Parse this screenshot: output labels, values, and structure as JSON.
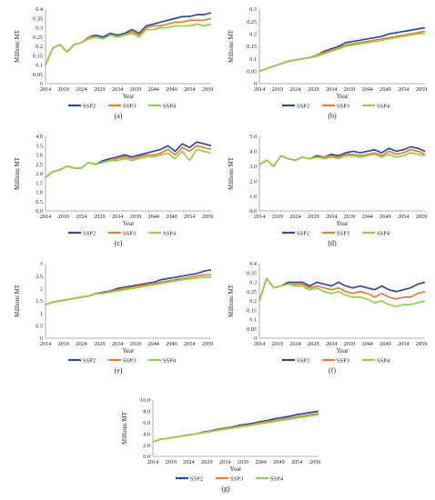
{
  "figure": {
    "panels": [
      {
        "label": "(a)"
      },
      {
        "label": "(b)"
      },
      {
        "label": "(c)"
      },
      {
        "label": "(d)"
      },
      {
        "label": "(e)"
      },
      {
        "label": "(f)"
      },
      {
        "label": "(g)"
      }
    ]
  },
  "colors": {
    "SSP2": "#2e4a9e",
    "SSP3": "#ed7d31",
    "SSP4": "#92d050"
  },
  "chart_data": [
    {
      "type": "line",
      "xlabel": "Year",
      "ylabel": "Millions MT",
      "ylim": [
        0,
        0.4
      ],
      "yticks": [
        0,
        0.05,
        0.1,
        0.15,
        0.2,
        0.25,
        0.3,
        0.35,
        0.4
      ],
      "ytick_labels": [
        "0",
        "0.05",
        "0.1",
        "0.15",
        "0.2",
        "0.25",
        "0.3",
        "0.35",
        "0.4"
      ],
      "xlim": [
        2014,
        2060
      ],
      "xticks": [
        2014,
        2019,
        2024,
        2029,
        2034,
        2039,
        2044,
        2049,
        2054,
        2059
      ],
      "legend": "bottom",
      "grid": false,
      "x": [
        2014,
        2016,
        2018,
        2020,
        2022,
        2024,
        2026,
        2028,
        2030,
        2032,
        2034,
        2036,
        2038,
        2040,
        2042,
        2044,
        2046,
        2048,
        2050,
        2052,
        2054,
        2056,
        2058,
        2060
      ],
      "series": [
        {
          "name": "SSP2",
          "values": [
            0.1,
            0.19,
            0.21,
            0.17,
            0.21,
            0.22,
            0.25,
            0.26,
            0.25,
            0.27,
            0.26,
            0.27,
            0.29,
            0.27,
            0.31,
            0.32,
            0.33,
            0.34,
            0.35,
            0.36,
            0.36,
            0.37,
            0.37,
            0.38
          ]
        },
        {
          "name": "SSP3",
          "values": [
            0.1,
            0.19,
            0.21,
            0.17,
            0.21,
            0.22,
            0.25,
            0.25,
            0.24,
            0.26,
            0.25,
            0.26,
            0.28,
            0.26,
            0.3,
            0.31,
            0.31,
            0.32,
            0.33,
            0.33,
            0.34,
            0.34,
            0.34,
            0.35
          ]
        },
        {
          "name": "SSP4",
          "values": [
            0.1,
            0.19,
            0.21,
            0.17,
            0.21,
            0.22,
            0.24,
            0.25,
            0.24,
            0.26,
            0.25,
            0.26,
            0.27,
            0.25,
            0.29,
            0.29,
            0.3,
            0.3,
            0.31,
            0.31,
            0.31,
            0.32,
            0.31,
            0.32
          ]
        }
      ]
    },
    {
      "type": "line",
      "xlabel": "Year",
      "ylabel": "Millions MT",
      "ylim": [
        0,
        0.3
      ],
      "yticks": [
        0,
        0.05,
        0.1,
        0.15,
        0.2,
        0.25,
        0.3
      ],
      "ytick_labels": [
        "0",
        "0.05",
        "0.1",
        "0.15",
        "0.2",
        "0.25",
        "0.3"
      ],
      "xlim": [
        2014,
        2060
      ],
      "xticks": [
        2014,
        2019,
        2024,
        2029,
        2034,
        2039,
        2044,
        2049,
        2054,
        2059
      ],
      "legend": "bottom",
      "grid": false,
      "x": [
        2014,
        2016,
        2018,
        2020,
        2022,
        2024,
        2026,
        2028,
        2030,
        2032,
        2034,
        2036,
        2038,
        2040,
        2042,
        2044,
        2046,
        2048,
        2050,
        2052,
        2054,
        2056,
        2058,
        2060
      ],
      "series": [
        {
          "name": "SSP2",
          "values": [
            0.05,
            0.06,
            0.07,
            0.08,
            0.09,
            0.095,
            0.1,
            0.105,
            0.115,
            0.13,
            0.14,
            0.15,
            0.165,
            0.17,
            0.175,
            0.18,
            0.185,
            0.19,
            0.2,
            0.205,
            0.21,
            0.215,
            0.22,
            0.225
          ]
        },
        {
          "name": "SSP3",
          "values": [
            0.05,
            0.06,
            0.07,
            0.08,
            0.09,
            0.095,
            0.1,
            0.105,
            0.115,
            0.125,
            0.135,
            0.145,
            0.155,
            0.16,
            0.165,
            0.17,
            0.175,
            0.18,
            0.185,
            0.19,
            0.195,
            0.2,
            0.205,
            0.21
          ]
        },
        {
          "name": "SSP4",
          "values": [
            0.05,
            0.06,
            0.07,
            0.08,
            0.09,
            0.095,
            0.1,
            0.105,
            0.11,
            0.12,
            0.13,
            0.14,
            0.15,
            0.155,
            0.16,
            0.165,
            0.17,
            0.175,
            0.18,
            0.185,
            0.19,
            0.195,
            0.2,
            0.2
          ]
        }
      ]
    },
    {
      "type": "line",
      "xlabel": "Year",
      "ylabel": "Millions MT",
      "ylim": [
        0,
        4.0
      ],
      "yticks": [
        0,
        0.5,
        1.0,
        1.5,
        2.0,
        2.5,
        3.0,
        3.5,
        4.0
      ],
      "ytick_labels": [
        "0.0",
        "0.5",
        "1.0",
        "1.5",
        "2.0",
        "2.5",
        "3.0",
        "3.5",
        "4.0"
      ],
      "xlim": [
        2014,
        2060
      ],
      "xticks": [
        2014,
        2019,
        2024,
        2029,
        2034,
        2039,
        2044,
        2049,
        2054,
        2059
      ],
      "legend": "bottom",
      "grid": false,
      "x": [
        2014,
        2016,
        2018,
        2020,
        2022,
        2024,
        2026,
        2028,
        2030,
        2032,
        2034,
        2036,
        2038,
        2040,
        2042,
        2044,
        2046,
        2048,
        2050,
        2052,
        2054,
        2056,
        2058,
        2060
      ],
      "series": [
        {
          "name": "SSP2",
          "values": [
            1.8,
            2.1,
            2.2,
            2.4,
            2.3,
            2.3,
            2.6,
            2.5,
            2.7,
            2.8,
            2.9,
            3.0,
            2.9,
            3.0,
            3.1,
            3.2,
            3.3,
            3.5,
            3.2,
            3.6,
            3.4,
            3.7,
            3.6,
            3.5
          ]
        },
        {
          "name": "SSP3",
          "values": [
            1.8,
            2.1,
            2.2,
            2.4,
            2.3,
            2.3,
            2.6,
            2.5,
            2.6,
            2.7,
            2.8,
            2.9,
            2.8,
            2.9,
            3.0,
            3.0,
            3.1,
            3.3,
            3.0,
            3.4,
            3.2,
            3.5,
            3.4,
            3.3
          ]
        },
        {
          "name": "SSP4",
          "values": [
            1.8,
            2.1,
            2.2,
            2.4,
            2.3,
            2.3,
            2.6,
            2.5,
            2.6,
            2.7,
            2.7,
            2.8,
            2.7,
            2.8,
            2.9,
            2.9,
            3.0,
            3.1,
            2.8,
            3.2,
            2.7,
            3.3,
            3.2,
            3.1
          ]
        }
      ]
    },
    {
      "type": "line",
      "xlabel": "Year",
      "ylabel": "Millions MT",
      "ylim": [
        0,
        5.0
      ],
      "yticks": [
        0,
        1.0,
        2.0,
        3.0,
        4.0,
        5.0
      ],
      "ytick_labels": [
        "0.0",
        "1.0",
        "2.0",
        "3.0",
        "4.0",
        "5.0"
      ],
      "xlim": [
        2014,
        2060
      ],
      "xticks": [
        2014,
        2019,
        2024,
        2029,
        2034,
        2039,
        2044,
        2049,
        2054,
        2059
      ],
      "legend": "bottom",
      "grid": false,
      "x": [
        2014,
        2016,
        2018,
        2020,
        2022,
        2024,
        2026,
        2028,
        2030,
        2032,
        2034,
        2036,
        2038,
        2040,
        2042,
        2044,
        2046,
        2048,
        2050,
        2052,
        2054,
        2056,
        2058,
        2060
      ],
      "series": [
        {
          "name": "SSP2",
          "values": [
            3.1,
            3.4,
            3.0,
            3.7,
            3.5,
            3.4,
            3.6,
            3.5,
            3.7,
            3.6,
            3.8,
            3.7,
            3.9,
            4.0,
            3.9,
            4.0,
            4.1,
            3.9,
            4.2,
            4.0,
            4.1,
            4.3,
            4.2,
            4.0
          ]
        },
        {
          "name": "SSP3",
          "values": [
            3.1,
            3.4,
            3.0,
            3.7,
            3.5,
            3.4,
            3.6,
            3.5,
            3.6,
            3.6,
            3.7,
            3.6,
            3.8,
            3.8,
            3.7,
            3.8,
            3.9,
            3.7,
            4.0,
            3.8,
            3.9,
            4.1,
            4.0,
            3.8
          ]
        },
        {
          "name": "SSP4",
          "values": [
            3.1,
            3.4,
            3.0,
            3.7,
            3.5,
            3.4,
            3.6,
            3.5,
            3.6,
            3.5,
            3.6,
            3.5,
            3.7,
            3.7,
            3.6,
            3.7,
            3.8,
            3.6,
            3.8,
            3.6,
            3.7,
            3.9,
            3.8,
            3.7
          ]
        }
      ]
    },
    {
      "type": "line",
      "xlabel": "Year",
      "ylabel": "Millions MT",
      "ylim": [
        0,
        3.0
      ],
      "yticks": [
        0,
        0.5,
        1.0,
        1.5,
        2.0,
        2.5,
        3.0
      ],
      "ytick_labels": [
        "0",
        "0.5",
        "1",
        "1.5",
        "2",
        "2.5",
        "3"
      ],
      "xlim": [
        2014,
        2060
      ],
      "xticks": [
        2014,
        2019,
        2024,
        2029,
        2034,
        2039,
        2044,
        2049,
        2054,
        2059
      ],
      "legend": "bottom",
      "grid": false,
      "x": [
        2014,
        2016,
        2018,
        2020,
        2022,
        2024,
        2026,
        2028,
        2030,
        2032,
        2034,
        2036,
        2038,
        2040,
        2042,
        2044,
        2046,
        2048,
        2050,
        2052,
        2054,
        2056,
        2058,
        2060
      ],
      "series": [
        {
          "name": "SSP2",
          "values": [
            1.35,
            1.45,
            1.5,
            1.55,
            1.6,
            1.65,
            1.7,
            1.8,
            1.85,
            1.9,
            2.0,
            2.05,
            2.1,
            2.15,
            2.2,
            2.25,
            2.35,
            2.4,
            2.45,
            2.5,
            2.55,
            2.6,
            2.7,
            2.75
          ]
        },
        {
          "name": "SSP3",
          "values": [
            1.35,
            1.45,
            1.5,
            1.55,
            1.6,
            1.65,
            1.7,
            1.8,
            1.82,
            1.88,
            1.95,
            2.0,
            2.05,
            2.1,
            2.15,
            2.2,
            2.25,
            2.3,
            2.35,
            2.4,
            2.45,
            2.5,
            2.55,
            2.55
          ]
        },
        {
          "name": "SSP4",
          "values": [
            1.35,
            1.45,
            1.5,
            1.55,
            1.6,
            1.65,
            1.7,
            1.78,
            1.8,
            1.85,
            1.9,
            1.95,
            2.0,
            2.05,
            2.1,
            2.15,
            2.2,
            2.25,
            2.3,
            2.35,
            2.38,
            2.42,
            2.45,
            2.45
          ]
        }
      ]
    },
    {
      "type": "line",
      "xlabel": "Year",
      "ylabel": "Millions MT",
      "ylim": [
        0,
        0.4
      ],
      "yticks": [
        0,
        0.05,
        0.1,
        0.15,
        0.2,
        0.25,
        0.3,
        0.35,
        0.4
      ],
      "ytick_labels": [
        "0",
        "0.05",
        "0.1",
        "0.15",
        "0.2",
        "0.25",
        "0.3",
        "0.35",
        "0.4"
      ],
      "xlim": [
        2014,
        2060
      ],
      "xticks": [
        2014,
        2019,
        2024,
        2029,
        2034,
        2039,
        2044,
        2049,
        2054,
        2059
      ],
      "legend": "bottom",
      "grid": false,
      "x": [
        2014,
        2016,
        2018,
        2020,
        2022,
        2024,
        2026,
        2028,
        2030,
        2032,
        2034,
        2036,
        2038,
        2040,
        2042,
        2044,
        2046,
        2048,
        2050,
        2052,
        2054,
        2056,
        2058,
        2060
      ],
      "series": [
        {
          "name": "SSP2",
          "values": [
            0.2,
            0.32,
            0.27,
            0.28,
            0.3,
            0.3,
            0.3,
            0.28,
            0.3,
            0.29,
            0.28,
            0.3,
            0.28,
            0.27,
            0.28,
            0.27,
            0.26,
            0.28,
            0.26,
            0.25,
            0.26,
            0.27,
            0.29,
            0.3
          ]
        },
        {
          "name": "SSP3",
          "values": [
            0.2,
            0.32,
            0.27,
            0.28,
            0.29,
            0.29,
            0.29,
            0.27,
            0.28,
            0.27,
            0.26,
            0.27,
            0.25,
            0.24,
            0.25,
            0.24,
            0.22,
            0.24,
            0.22,
            0.21,
            0.22,
            0.22,
            0.24,
            0.25
          ]
        },
        {
          "name": "SSP4",
          "values": [
            0.2,
            0.32,
            0.27,
            0.28,
            0.29,
            0.28,
            0.28,
            0.26,
            0.27,
            0.25,
            0.24,
            0.25,
            0.23,
            0.22,
            0.22,
            0.21,
            0.19,
            0.2,
            0.18,
            0.17,
            0.18,
            0.18,
            0.19,
            0.2
          ]
        }
      ]
    },
    {
      "type": "line",
      "xlabel": "Year",
      "ylabel": "Millions MT",
      "ylim": [
        0,
        10.0
      ],
      "yticks": [
        0,
        2.0,
        4.0,
        6.0,
        8.0,
        10.0
      ],
      "ytick_labels": [
        "0.0",
        "2.0",
        "4.0",
        "6.0",
        "8.0",
        "10.0"
      ],
      "xlim": [
        2014,
        2060
      ],
      "xticks": [
        2014,
        2019,
        2024,
        2029,
        2034,
        2039,
        2044,
        2049,
        2054,
        2059
      ],
      "legend": "bottom",
      "grid": false,
      "x": [
        2014,
        2016,
        2018,
        2020,
        2022,
        2024,
        2026,
        2028,
        2030,
        2032,
        2034,
        2036,
        2038,
        2040,
        2042,
        2044,
        2046,
        2048,
        2050,
        2052,
        2054,
        2056,
        2058,
        2060
      ],
      "series": [
        {
          "name": "SSP2",
          "values": [
            2.6,
            3.0,
            3.2,
            3.4,
            3.6,
            3.8,
            4.0,
            4.3,
            4.5,
            4.8,
            5.0,
            5.2,
            5.5,
            5.7,
            5.9,
            6.2,
            6.4,
            6.7,
            6.9,
            7.1,
            7.4,
            7.6,
            7.8,
            8.0
          ]
        },
        {
          "name": "SSP3",
          "values": [
            2.6,
            3.0,
            3.2,
            3.4,
            3.6,
            3.8,
            4.0,
            4.2,
            4.4,
            4.7,
            4.9,
            5.1,
            5.3,
            5.5,
            5.7,
            6.0,
            6.2,
            6.4,
            6.6,
            6.8,
            7.0,
            7.2,
            7.4,
            7.6
          ]
        },
        {
          "name": "SSP4",
          "values": [
            2.6,
            3.0,
            3.2,
            3.4,
            3.6,
            3.8,
            4.0,
            4.2,
            4.4,
            4.6,
            4.8,
            5.0,
            5.2,
            5.4,
            5.6,
            5.8,
            6.0,
            6.2,
            6.4,
            6.6,
            6.8,
            7.0,
            7.2,
            7.4
          ]
        }
      ]
    }
  ]
}
